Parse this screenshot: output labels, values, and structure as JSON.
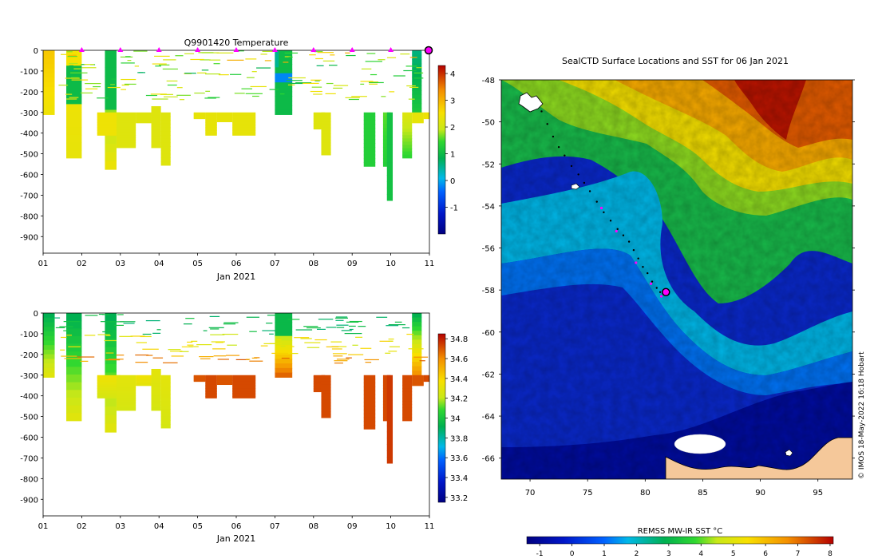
{
  "chart_data": [
    {
      "type": "heatmap",
      "id": "temperature-section",
      "title": "Q9901420  Temperature",
      "xlabel": "Jan 2021",
      "x_ticks": [
        "01",
        "02",
        "03",
        "04",
        "05",
        "06",
        "07",
        "08",
        "09",
        "10",
        "11"
      ],
      "xlim": [
        1,
        11
      ],
      "ylim": [
        -980,
        0
      ],
      "y_ticks": [
        0,
        -100,
        -200,
        -300,
        -400,
        -500,
        -600,
        -700,
        -800,
        -900
      ],
      "colorbar": {
        "min": -2,
        "max": 4.3,
        "ticks": [
          -1,
          0,
          1,
          2,
          3,
          4
        ]
      },
      "profile_markers_x": [
        2,
        3,
        4,
        5,
        6,
        7,
        8,
        9,
        10
      ],
      "current_marker_x": 11,
      "columns": [
        {
          "x0": 1.0,
          "x1": 1.3,
          "depth": 310,
          "top": 2.8,
          "bottom": 2.4
        },
        {
          "x0": 1.6,
          "x1": 2.0,
          "depth": 520,
          "top": 2.5,
          "bottom": 2.3,
          "band": [
            80,
            250,
            1.0
          ]
        },
        {
          "x0": 2.6,
          "x1": 2.9,
          "depth": 575,
          "top": 1.0,
          "bottom": 2.4,
          "band": [
            0,
            300,
            1.0
          ]
        },
        {
          "x0": 2.4,
          "x1": 3.0,
          "depth": 410,
          "top": 2.4,
          "bottom": 2.4,
          "from": 300
        },
        {
          "x0": 2.9,
          "x1": 3.4,
          "depth": 470,
          "top": 2.2,
          "bottom": 2.2,
          "from": 300
        },
        {
          "x0": 3.4,
          "x1": 3.8,
          "depth": 350,
          "top": 2.2,
          "bottom": 2.2,
          "from": 300
        },
        {
          "x0": 3.8,
          "x1": 4.05,
          "depth": 470,
          "top": 2.2,
          "bottom": 2.2,
          "from": 270
        },
        {
          "x0": 4.05,
          "x1": 4.3,
          "depth": 555,
          "top": 2.2,
          "bottom": 2.2,
          "from": 300
        },
        {
          "x0": 4.9,
          "x1": 5.2,
          "depth": 330,
          "top": 2.3,
          "bottom": 2.3,
          "from": 300
        },
        {
          "x0": 5.2,
          "x1": 5.5,
          "depth": 410,
          "top": 2.3,
          "bottom": 2.3,
          "from": 300
        },
        {
          "x0": 5.5,
          "x1": 5.9,
          "depth": 345,
          "top": 2.3,
          "bottom": 2.3,
          "from": 300
        },
        {
          "x0": 5.9,
          "x1": 6.5,
          "depth": 410,
          "top": 2.3,
          "bottom": 2.3,
          "from": 300
        },
        {
          "x0": 7.0,
          "x1": 7.45,
          "depth": 310,
          "top": 1.0,
          "bottom": 2.3,
          "band": [
            0,
            300,
            1.0
          ],
          "cold": [
            110,
            150
          ]
        },
        {
          "x0": 7.0,
          "x1": 7.1,
          "depth": 80,
          "top": 0.5,
          "bottom": 0.5
        },
        {
          "x0": 8.0,
          "x1": 8.3,
          "depth": 380,
          "top": 2.2,
          "bottom": 2.2,
          "from": 300
        },
        {
          "x0": 8.2,
          "x1": 8.45,
          "depth": 505,
          "top": 2.2,
          "bottom": 2.2,
          "from": 300
        },
        {
          "x0": 9.3,
          "x1": 9.6,
          "depth": 560,
          "top": 1.3,
          "bottom": 1.3,
          "from": 300
        },
        {
          "x0": 9.8,
          "x1": 10.0,
          "depth": 560,
          "top": 1.6,
          "bottom": 1.3,
          "from": 300
        },
        {
          "x0": 9.9,
          "x1": 10.05,
          "depth": 725,
          "top": 1.1,
          "bottom": 1.1,
          "from": 300
        },
        {
          "x0": 10.3,
          "x1": 10.55,
          "depth": 520,
          "top": 2.2,
          "bottom": 1.4,
          "from": 300
        },
        {
          "x0": 10.55,
          "x1": 10.8,
          "depth": 300,
          "top": 0.6,
          "bottom": 1.2
        },
        {
          "x0": 10.55,
          "x1": 10.85,
          "depth": 350,
          "top": 2.3,
          "bottom": 2.3,
          "from": 300
        },
        {
          "x0": 10.85,
          "x1": 11.0,
          "depth": 330,
          "top": 2.4,
          "bottom": 2.4,
          "from": 300
        }
      ]
    },
    {
      "type": "heatmap",
      "id": "salinity-section",
      "title": "",
      "xlabel": "Jan 2021",
      "x_ticks": [
        "01",
        "02",
        "03",
        "04",
        "05",
        "06",
        "07",
        "08",
        "09",
        "10",
        "11"
      ],
      "xlim": [
        1,
        11
      ],
      "ylim": [
        -980,
        0
      ],
      "y_ticks": [
        0,
        -100,
        -200,
        -300,
        -400,
        -500,
        -600,
        -700,
        -800,
        -900
      ],
      "colorbar": {
        "min": 33.15,
        "max": 34.85,
        "ticks": [
          33.2,
          33.4,
          33.6,
          33.8,
          34,
          34.2,
          34.4,
          34.6,
          34.8
        ]
      },
      "columns": [
        {
          "x0": 1.0,
          "x1": 1.3,
          "depth": 310,
          "top": 33.9,
          "bottom": 34.3
        },
        {
          "x0": 1.6,
          "x1": 2.0,
          "depth": 520,
          "top": 33.9,
          "bottom": 34.3
        },
        {
          "x0": 2.6,
          "x1": 2.9,
          "depth": 575,
          "top": 33.9,
          "bottom": 34.3
        },
        {
          "x0": 2.4,
          "x1": 3.0,
          "depth": 410,
          "top": 34.35,
          "bottom": 34.25,
          "from": 300
        },
        {
          "x0": 2.9,
          "x1": 3.4,
          "depth": 470,
          "top": 34.3,
          "bottom": 34.25,
          "from": 300
        },
        {
          "x0": 3.4,
          "x1": 3.8,
          "depth": 350,
          "top": 34.35,
          "bottom": 34.3,
          "from": 300
        },
        {
          "x0": 3.8,
          "x1": 4.05,
          "depth": 470,
          "top": 34.3,
          "bottom": 34.25,
          "from": 270
        },
        {
          "x0": 4.05,
          "x1": 4.3,
          "depth": 555,
          "top": 34.3,
          "bottom": 34.25,
          "from": 300
        },
        {
          "x0": 4.9,
          "x1": 5.2,
          "depth": 330,
          "top": 34.7,
          "bottom": 34.7,
          "from": 300
        },
        {
          "x0": 5.2,
          "x1": 5.5,
          "depth": 410,
          "top": 34.72,
          "bottom": 34.72,
          "from": 300
        },
        {
          "x0": 5.5,
          "x1": 5.9,
          "depth": 345,
          "top": 34.7,
          "bottom": 34.7,
          "from": 300
        },
        {
          "x0": 5.9,
          "x1": 6.5,
          "depth": 410,
          "top": 34.72,
          "bottom": 34.72,
          "from": 300
        },
        {
          "x0": 7.0,
          "x1": 7.45,
          "depth": 310,
          "top": 33.9,
          "bottom": 34.7,
          "band": [
            0,
            100,
            33.95
          ]
        },
        {
          "x0": 8.0,
          "x1": 8.3,
          "depth": 380,
          "top": 34.72,
          "bottom": 34.72,
          "from": 300
        },
        {
          "x0": 8.2,
          "x1": 8.45,
          "depth": 505,
          "top": 34.72,
          "bottom": 34.72,
          "from": 300
        },
        {
          "x0": 9.3,
          "x1": 9.6,
          "depth": 560,
          "top": 34.72,
          "bottom": 34.72,
          "from": 300
        },
        {
          "x0": 9.8,
          "x1": 10.0,
          "depth": 520,
          "top": 34.72,
          "bottom": 34.72,
          "from": 300
        },
        {
          "x0": 9.9,
          "x1": 10.05,
          "depth": 725,
          "top": 34.75,
          "bottom": 34.75,
          "from": 300
        },
        {
          "x0": 10.3,
          "x1": 10.55,
          "depth": 520,
          "top": 34.72,
          "bottom": 34.72,
          "from": 300
        },
        {
          "x0": 10.55,
          "x1": 10.8,
          "depth": 300,
          "top": 33.9,
          "bottom": 34.6
        },
        {
          "x0": 10.55,
          "x1": 10.85,
          "depth": 350,
          "top": 34.7,
          "bottom": 34.7,
          "from": 300
        },
        {
          "x0": 10.85,
          "x1": 11.0,
          "depth": 330,
          "top": 34.72,
          "bottom": 34.72,
          "from": 300
        }
      ]
    },
    {
      "type": "heatmap",
      "id": "sst-map",
      "title": "SealCTD Surface Locations and SST for 06 Jan 2021",
      "xlim": [
        67.5,
        98
      ],
      "ylim": [
        -67,
        -48
      ],
      "x_ticks": [
        70,
        75,
        80,
        85,
        90,
        95
      ],
      "y_ticks": [
        -48,
        -50,
        -52,
        -54,
        -56,
        -58,
        -60,
        -62,
        -64,
        -66
      ],
      "colorbar": {
        "label": "REMSS MW-IR SST °C",
        "min": -1.4,
        "max": 8.1,
        "ticks": [
          -1,
          0,
          1,
          2,
          3,
          4,
          5,
          6,
          7,
          8
        ]
      },
      "track": [
        [
          71.0,
          -49.5
        ],
        [
          71.5,
          -50.1
        ],
        [
          72.0,
          -50.7
        ],
        [
          72.5,
          -51.2
        ],
        [
          73.0,
          -51.6
        ],
        [
          73.6,
          -52.1
        ],
        [
          74.2,
          -52.5
        ],
        [
          74.7,
          -52.9
        ],
        [
          75.2,
          -53.3
        ],
        [
          75.8,
          -53.8
        ],
        [
          76.4,
          -54.3
        ],
        [
          77.0,
          -54.7
        ],
        [
          77.6,
          -55.1
        ],
        [
          78.1,
          -55.4
        ],
        [
          78.6,
          -55.7
        ],
        [
          79.0,
          -56.1
        ],
        [
          79.4,
          -56.5
        ],
        [
          79.8,
          -56.9
        ],
        [
          80.2,
          -57.2
        ],
        [
          80.6,
          -57.6
        ],
        [
          81.0,
          -57.9
        ],
        [
          81.3,
          -58.1
        ]
      ],
      "track_magenta": [
        [
          76.2,
          -54.1
        ],
        [
          77.5,
          -55.2
        ],
        [
          79.2,
          -56.7
        ],
        [
          80.5,
          -57.7
        ],
        [
          81.4,
          -58.3
        ]
      ],
      "current_position": [
        81.8,
        -58.1
      ],
      "land": "Antarctica",
      "islands": [
        "Kerguelen",
        "Heard"
      ]
    }
  ],
  "credit": "© IMOS 18-May-2022 16:18 Hobart"
}
